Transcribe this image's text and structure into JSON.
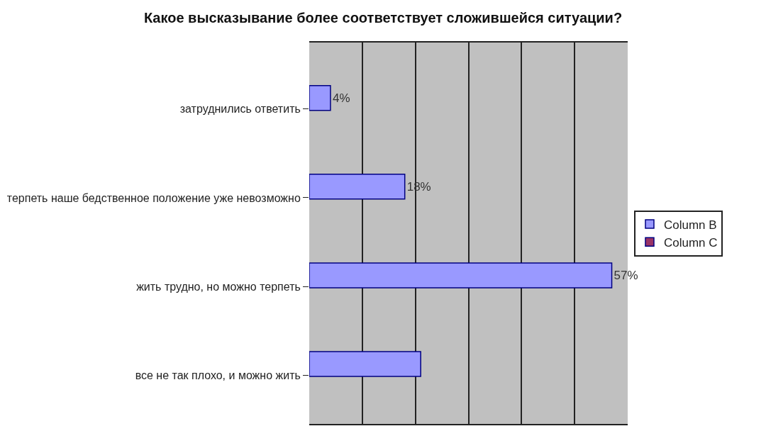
{
  "chart_data": {
    "type": "bar",
    "orientation": "horizontal",
    "title": "Какое высказывание более соответствует сложившейся ситуации?",
    "categories": [
      "затруднились ответить",
      "терпеть наше бедственное положение уже невозможно",
      "жить трудно, но можно терпеть",
      "все не так плохо, и можно жить"
    ],
    "series": [
      {
        "name": "Column B",
        "color": "#9999ff",
        "values": [
          4,
          18,
          57,
          21
        ],
        "value_labels": [
          "4%",
          "18%",
          "57%",
          null
        ]
      },
      {
        "name": "Column C",
        "color": "#993366",
        "values": [
          null,
          null,
          null,
          null
        ]
      }
    ],
    "xlim": [
      0,
      60
    ],
    "xticks": [
      {
        "value": 0,
        "label": null
      },
      {
        "value": 10,
        "label": null
      },
      {
        "value": 20,
        "label": null
      },
      {
        "value": 30,
        "label": null
      },
      {
        "value": 40,
        "label": null
      },
      {
        "value": 50,
        "label": null
      },
      {
        "value": 60,
        "label": null
      }
    ],
    "tick_labels": "y",
    "grid": "x",
    "legend": "right"
  }
}
